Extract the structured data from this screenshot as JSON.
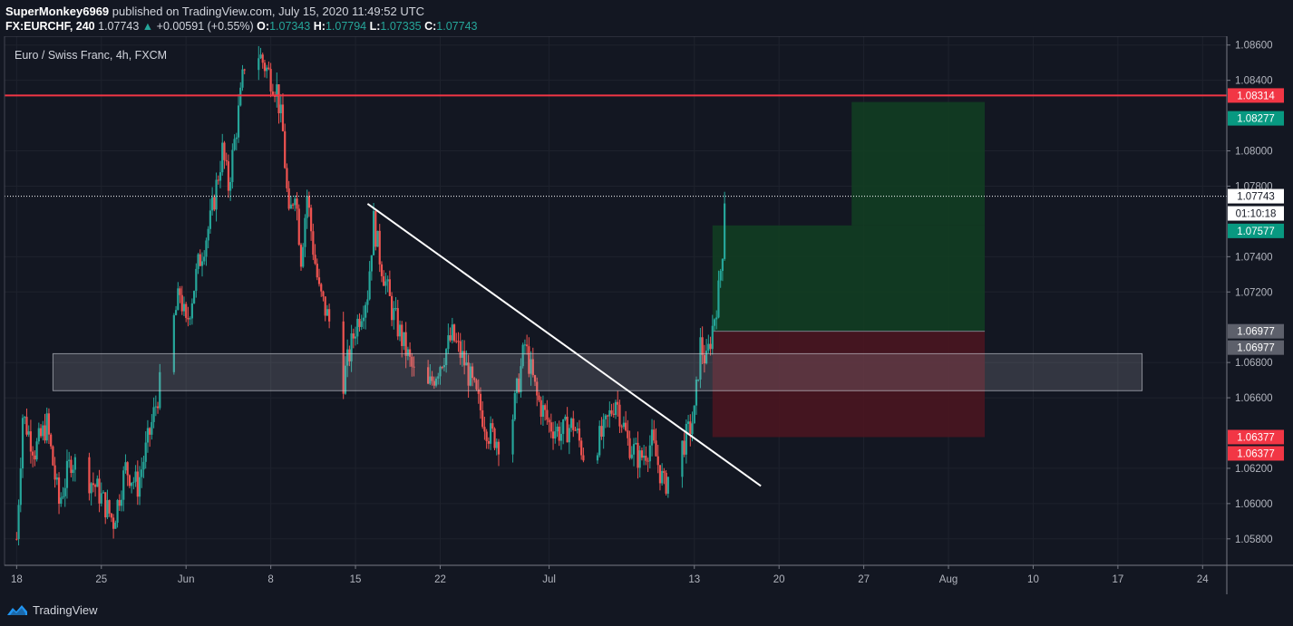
{
  "header": {
    "publisher": "SuperMonkey6969",
    "published_text": "published on TradingView.com, July 15, 2020 11:49:52 UTC",
    "symbol": "FX:EURCHF, 240",
    "last": "1.07743",
    "change": "+0.00591 (+0.55%)",
    "open_label": "O:",
    "open": "1.07343",
    "high_label": "H:",
    "high": "1.07794",
    "low_label": "L:",
    "low": "1.07335",
    "close_label": "C:",
    "close": "1.07743"
  },
  "footer": {
    "brand": "TradingView",
    "logo_icon": "tradingview-cloud-icon"
  },
  "chart_data": {
    "type": "candlestick",
    "title": "Euro / Swiss Franc, 4h, FXCM",
    "colors": {
      "up": "#26a69a",
      "down": "#ef5350",
      "background": "#131722",
      "grid": "#1e222d",
      "resistance": "#f23645",
      "profit_zone": "#124022",
      "loss_zone": "#4a1520",
      "demand_zone": "#b2b5be"
    },
    "y_axis": {
      "ylim": [
        1.0565,
        1.0865
      ],
      "ticks": [
        "1.08600",
        "1.08400",
        "1.08000",
        "1.07800",
        "1.07400",
        "1.07200",
        "1.06800",
        "1.06600",
        "1.06200",
        "1.06000",
        "1.05800"
      ]
    },
    "x_axis": {
      "xlim": [
        "2020-05-17T00:00",
        "2020-08-26T00:00"
      ],
      "ticks": [
        {
          "label": "18",
          "date": "2020-05-18"
        },
        {
          "label": "25",
          "date": "2020-05-25"
        },
        {
          "label": "Jun",
          "date": "2020-06-01"
        },
        {
          "label": "8",
          "date": "2020-06-08"
        },
        {
          "label": "15",
          "date": "2020-06-15"
        },
        {
          "label": "22",
          "date": "2020-06-22"
        },
        {
          "label": "Jul",
          "date": "2020-07-01"
        },
        {
          "label": "13",
          "date": "2020-07-13"
        },
        {
          "label": "20",
          "date": "2020-07-20"
        },
        {
          "label": "27",
          "date": "2020-07-27"
        },
        {
          "label": "Aug",
          "date": "2020-08-03"
        },
        {
          "label": "10",
          "date": "2020-08-10"
        },
        {
          "label": "17",
          "date": "2020-08-17"
        },
        {
          "label": "24",
          "date": "2020-08-24"
        }
      ]
    },
    "price_path": [
      [
        "2020-05-18T00:00",
        1.058
      ],
      [
        "2020-05-18T12:00",
        1.065
      ],
      [
        "2020-05-19T12:00",
        1.063
      ],
      [
        "2020-05-20T12:00",
        1.0645
      ],
      [
        "2020-05-21T12:00",
        1.06
      ],
      [
        "2020-05-22T12:00",
        1.0625
      ],
      [
        "2020-05-24T12:00",
        1.061
      ],
      [
        "2020-05-26T00:00",
        1.059
      ],
      [
        "2020-05-27T00:00",
        1.062
      ],
      [
        "2020-05-28T00:00",
        1.061
      ],
      [
        "2020-05-29T00:00",
        1.064
      ],
      [
        "2020-05-31T12:00",
        1.072
      ],
      [
        "2020-06-01T00:00",
        1.07
      ],
      [
        "2020-06-02T00:00",
        1.0735
      ],
      [
        "2020-06-03T00:00",
        1.076
      ],
      [
        "2020-06-04T00:00",
        1.08
      ],
      [
        "2020-06-04T12:00",
        1.078
      ],
      [
        "2020-06-05T12:00",
        1.083
      ],
      [
        "2020-06-06T00:00",
        1.086
      ],
      [
        "2020-06-07T00:00",
        1.0855
      ],
      [
        "2020-06-08T12:00",
        1.0835
      ],
      [
        "2020-06-09T00:00",
        1.081
      ],
      [
        "2020-06-09T12:00",
        1.076
      ],
      [
        "2020-06-10T00:00",
        1.078
      ],
      [
        "2020-06-10T12:00",
        1.074
      ],
      [
        "2020-06-11T00:00",
        1.0775
      ],
      [
        "2020-06-11T12:00",
        1.0745
      ],
      [
        "2020-06-12T00:00",
        1.072
      ],
      [
        "2020-06-13T00:00",
        1.07
      ],
      [
        "2020-06-14T00:00",
        1.067
      ],
      [
        "2020-06-15T00:00",
        1.07
      ],
      [
        "2020-06-16T00:00",
        1.072
      ],
      [
        "2020-06-16T12:00",
        1.076
      ],
      [
        "2020-06-17T00:00",
        1.074
      ],
      [
        "2020-06-18T00:00",
        1.071
      ],
      [
        "2020-06-19T00:00",
        1.069
      ],
      [
        "2020-06-20T00:00",
        1.067
      ],
      [
        "2020-06-21T00:00",
        1.0665
      ],
      [
        "2020-06-22T00:00",
        1.068
      ],
      [
        "2020-06-23T00:00",
        1.0695
      ],
      [
        "2020-06-24T00:00",
        1.068
      ],
      [
        "2020-06-25T00:00",
        1.066
      ],
      [
        "2020-06-26T00:00",
        1.064
      ],
      [
        "2020-06-27T00:00",
        1.0635
      ],
      [
        "2020-06-28T00:00",
        1.065
      ],
      [
        "2020-06-29T00:00",
        1.069
      ],
      [
        "2020-06-30T00:00",
        1.066
      ],
      [
        "2020-07-01T00:00",
        1.0645
      ],
      [
        "2020-07-02T00:00",
        1.064
      ],
      [
        "2020-07-03T00:00",
        1.0645
      ],
      [
        "2020-07-04T00:00",
        1.0625
      ],
      [
        "2020-07-05T12:00",
        1.064
      ],
      [
        "2020-07-06T12:00",
        1.066
      ],
      [
        "2020-07-07T12:00",
        1.0635
      ],
      [
        "2020-07-08T12:00",
        1.0625
      ],
      [
        "2020-07-09T12:00",
        1.0635
      ],
      [
        "2020-07-10T12:00",
        1.061
      ],
      [
        "2020-07-11T12:00",
        1.0625
      ],
      [
        "2020-07-12T12:00",
        1.064
      ],
      [
        "2020-07-13T00:00",
        1.065
      ],
      [
        "2020-07-13T12:00",
        1.069
      ],
      [
        "2020-07-14T00:00",
        1.068
      ],
      [
        "2020-07-14T12:00",
        1.07
      ],
      [
        "2020-07-15T00:00",
        1.072
      ],
      [
        "2020-07-15T08:00",
        1.0745
      ],
      [
        "2020-07-15T12:00",
        1.07743
      ]
    ],
    "annotations": {
      "resistance_line": {
        "price": 1.08314,
        "label": "1.08314"
      },
      "last_price_line": {
        "price": 1.07743,
        "label": "1.07743",
        "countdown": "01:10:18"
      },
      "trendline": {
        "start": [
          "2020-06-16T00:00",
          1.077
        ],
        "end": [
          "2020-07-18T12:00",
          1.061
        ]
      },
      "demand_zone": {
        "from": "2020-05-21T00:00",
        "to": "2020-08-19T00:00",
        "top": 1.0685,
        "bottom": 1.0664
      },
      "position": {
        "from": "2020-07-14T12:00",
        "to": "2020-08-06T00:00",
        "entry": 1.06977,
        "stop": 1.06377,
        "target1": 1.07577,
        "target1_end": "2020-07-26T00:00",
        "target2": 1.08277,
        "labels": {
          "target2": "1.08277",
          "target1": "1.07577",
          "entry_a": "1.06977",
          "entry_b": "1.06977",
          "stop_a": "1.06377",
          "stop_b": "1.06377"
        }
      }
    }
  }
}
